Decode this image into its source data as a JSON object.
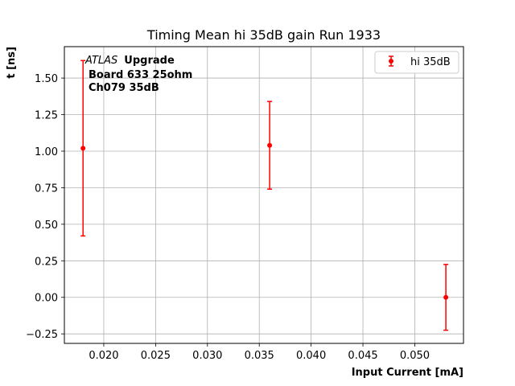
{
  "chart_data": {
    "type": "scatter",
    "title": "Timing Mean hi 35dB gain Run 1933",
    "xlabel": "Input Current [mA]",
    "ylabel": "t [ns]",
    "xlim": [
      0.0162,
      0.0547
    ],
    "ylim": [
      -0.315,
      1.715
    ],
    "grid": true,
    "legend_placement": "top-right",
    "x_ticks": [
      "0.020",
      "0.025",
      "0.030",
      "0.035",
      "0.040",
      "0.045",
      "0.050"
    ],
    "x_tick_values": [
      0.02,
      0.025,
      0.03,
      0.035,
      0.04,
      0.045,
      0.05
    ],
    "y_ticks": [
      "−0.25",
      "0.00",
      "0.25",
      "0.50",
      "0.75",
      "1.00",
      "1.25",
      "1.50"
    ],
    "y_tick_values": [
      -0.25,
      0.0,
      0.25,
      0.5,
      0.75,
      1.0,
      1.25,
      1.5
    ],
    "annotation": {
      "atlas": "ATLAS",
      "upgrade": "Upgrade",
      "line2": "Board 633 25ohm",
      "line3": "Ch079 35dB"
    },
    "series": [
      {
        "name": "hi 35dB",
        "color": "#ff0000",
        "x": [
          0.018,
          0.036,
          0.053
        ],
        "y": [
          1.02,
          1.04,
          0.0
        ],
        "yerr": [
          0.6,
          0.3,
          0.225
        ]
      }
    ]
  }
}
